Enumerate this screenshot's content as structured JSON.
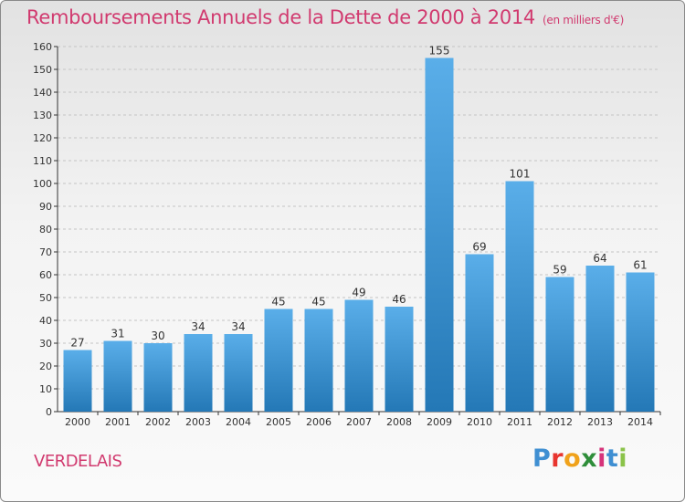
{
  "header": {
    "title": "Remboursements Annuels de la Dette de 2000 à 2014",
    "subtitle": "(en milliers d'€)"
  },
  "footer": {
    "town": "VERDELAIS",
    "brand_letters": [
      "P",
      "r",
      "o",
      "x",
      "i",
      "t",
      "i"
    ],
    "brand_colors": [
      "#3f8fd2",
      "#e8352f",
      "#f0a21b",
      "#2f8e3a",
      "#d6347a",
      "#3f8fd2",
      "#8bc34a"
    ]
  },
  "colors": {
    "title": "#d13a6f",
    "bar_top": "#5aaee9",
    "bar_bottom": "#2478b6",
    "grid": "#c4c4c4",
    "axis": "#333333"
  },
  "chart_data": {
    "type": "bar",
    "categories": [
      "2000",
      "2001",
      "2002",
      "2003",
      "2004",
      "2005",
      "2006",
      "2007",
      "2008",
      "2009",
      "2010",
      "2011",
      "2012",
      "2013",
      "2014"
    ],
    "values": [
      27,
      31,
      30,
      34,
      34,
      45,
      45,
      49,
      46,
      155,
      69,
      101,
      59,
      64,
      61
    ],
    "ylim": [
      0,
      160
    ],
    "yticks": [
      0,
      10,
      20,
      30,
      40,
      50,
      60,
      70,
      80,
      90,
      100,
      110,
      120,
      130,
      140,
      150,
      160
    ],
    "grid": true,
    "data_labels": true
  }
}
